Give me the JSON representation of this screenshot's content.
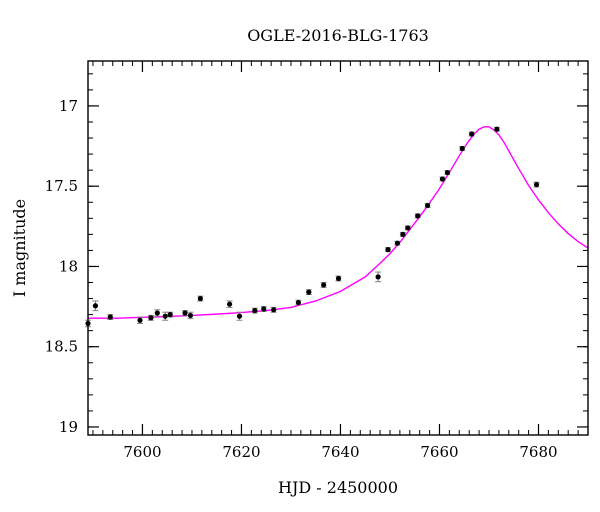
{
  "chart_data": {
    "type": "scatter",
    "title": "OGLE-2016-BLG-1763",
    "xlabel": "HJD - 2450000",
    "ylabel": "I magnitude",
    "xlim": [
      7589,
      7690
    ],
    "ylim": [
      19.05,
      16.72
    ],
    "y_inverted": true,
    "x_major_ticks": [
      7600,
      7620,
      7640,
      7660,
      7680
    ],
    "x_tick_labels": [
      "7600",
      "7620",
      "7640",
      "7660",
      "7680"
    ],
    "x_minor_step": 2,
    "y_major_ticks": [
      17,
      17.5,
      18,
      18.5,
      19
    ],
    "y_tick_labels": [
      "17",
      "17.5",
      "18",
      "18.5",
      "19"
    ],
    "y_minor_step": 0.1,
    "grid": false,
    "legend": "none",
    "colors": {
      "data": "#000000",
      "model": "#ff00ff",
      "errorbar": "#808080"
    },
    "series": [
      {
        "kind": "points",
        "points": [
          {
            "x": 7589.0,
            "y": 18.355,
            "err": 0.02
          },
          {
            "x": 7590.5,
            "y": 18.245,
            "err": 0.03
          },
          {
            "x": 7593.5,
            "y": 18.315,
            "err": 0.015
          },
          {
            "x": 7599.5,
            "y": 18.335,
            "err": 0.02
          },
          {
            "x": 7601.7,
            "y": 18.32,
            "err": 0.015
          },
          {
            "x": 7603.0,
            "y": 18.29,
            "err": 0.02
          },
          {
            "x": 7604.6,
            "y": 18.31,
            "err": 0.025
          },
          {
            "x": 7605.6,
            "y": 18.3,
            "err": 0.015
          },
          {
            "x": 7608.6,
            "y": 18.29,
            "err": 0.015
          },
          {
            "x": 7609.7,
            "y": 18.305,
            "err": 0.02
          },
          {
            "x": 7611.7,
            "y": 18.2,
            "err": 0.015
          },
          {
            "x": 7617.6,
            "y": 18.235,
            "err": 0.02
          },
          {
            "x": 7619.6,
            "y": 18.31,
            "err": 0.025
          },
          {
            "x": 7622.7,
            "y": 18.275,
            "err": 0.015
          },
          {
            "x": 7624.5,
            "y": 18.265,
            "err": 0.015
          },
          {
            "x": 7626.5,
            "y": 18.27,
            "err": 0.015
          },
          {
            "x": 7631.5,
            "y": 18.225,
            "err": 0.015
          },
          {
            "x": 7633.6,
            "y": 18.16,
            "err": 0.015
          },
          {
            "x": 7636.6,
            "y": 18.115,
            "err": 0.015
          },
          {
            "x": 7639.6,
            "y": 18.075,
            "err": 0.015
          },
          {
            "x": 7647.6,
            "y": 18.065,
            "err": 0.03
          },
          {
            "x": 7649.6,
            "y": 17.895,
            "err": 0.012
          },
          {
            "x": 7651.5,
            "y": 17.855,
            "err": 0.012
          },
          {
            "x": 7652.6,
            "y": 17.8,
            "err": 0.012
          },
          {
            "x": 7653.6,
            "y": 17.76,
            "err": 0.012
          },
          {
            "x": 7655.6,
            "y": 17.685,
            "err": 0.012
          },
          {
            "x": 7657.6,
            "y": 17.62,
            "err": 0.012
          },
          {
            "x": 7660.6,
            "y": 17.455,
            "err": 0.012
          },
          {
            "x": 7661.6,
            "y": 17.415,
            "err": 0.012
          },
          {
            "x": 7664.6,
            "y": 17.265,
            "err": 0.012
          },
          {
            "x": 7666.5,
            "y": 17.175,
            "err": 0.012
          },
          {
            "x": 7671.6,
            "y": 17.145,
            "err": 0.012
          },
          {
            "x": 7679.6,
            "y": 17.49,
            "err": 0.015
          }
        ]
      },
      {
        "kind": "model-curve",
        "x": [
          7589,
          7595,
          7600,
          7605,
          7610,
          7615,
          7620,
          7625,
          7630,
          7635,
          7640,
          7645,
          7648,
          7650,
          7652,
          7654,
          7656,
          7658,
          7660,
          7662,
          7664,
          7665,
          7666,
          7667,
          7668,
          7669,
          7670,
          7671,
          7672,
          7673,
          7674,
          7676,
          7678,
          7680,
          7682,
          7684,
          7686,
          7688,
          7690
        ],
        "y": [
          18.322,
          18.322,
          18.317,
          18.312,
          18.305,
          18.297,
          18.287,
          18.275,
          18.255,
          18.215,
          18.155,
          18.065,
          17.98,
          17.92,
          17.85,
          17.77,
          17.69,
          17.605,
          17.515,
          17.415,
          17.31,
          17.26,
          17.215,
          17.175,
          17.145,
          17.13,
          17.13,
          17.15,
          17.18,
          17.225,
          17.28,
          17.39,
          17.495,
          17.585,
          17.665,
          17.735,
          17.795,
          17.845,
          17.885
        ]
      }
    ]
  }
}
